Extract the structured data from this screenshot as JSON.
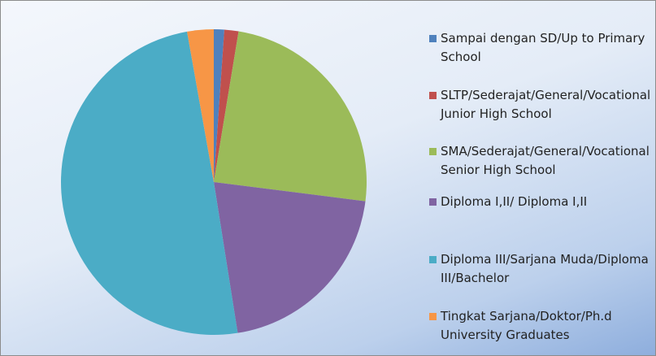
{
  "chart_data": {
    "type": "pie",
    "categories": [
      "Sampai dengan SD/Up to Primary School",
      "SLTP/Sederajat/General/Vocational Junior High School",
      "SMA/Sederajat/General/Vocational Senior High School",
      "Diploma I,II/ Diploma I,II",
      "Diploma III/Sarjana Muda/Diploma III/Bachelor",
      "Tingkat Sarjana/Doktor/Ph.d University Graduates"
    ],
    "values": [
      1.1,
      1.5,
      24.4,
      20.5,
      49.7,
      2.8
    ],
    "colors": [
      "#4f81bd",
      "#c0504d",
      "#9bbb59",
      "#8064a2",
      "#4bacc6",
      "#f79646"
    ],
    "legend": "right"
  }
}
